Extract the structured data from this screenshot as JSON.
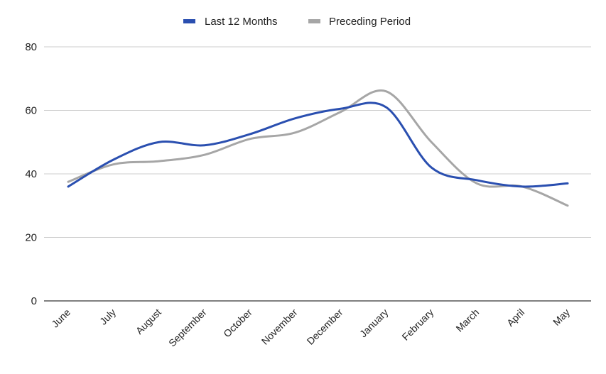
{
  "chart_data": {
    "type": "line",
    "categories": [
      "June",
      "July",
      "August",
      "September",
      "October",
      "November",
      "December",
      "January",
      "February",
      "March",
      "April",
      "May"
    ],
    "series": [
      {
        "name": "Last 12 Months",
        "color": "#2a4fb0",
        "values": [
          36,
          44.5,
          50,
          49,
          52.5,
          57.5,
          60.5,
          61,
          42,
          38,
          36,
          37
        ]
      },
      {
        "name": "Preceding Period",
        "color": "#a6a6a6",
        "values": [
          37.5,
          43,
          44,
          46,
          51,
          53,
          59.5,
          66,
          50,
          37,
          36,
          30
        ]
      }
    ],
    "y_ticks": [
      0,
      20,
      40,
      60,
      80
    ],
    "ylim": [
      0,
      80
    ],
    "grid": true,
    "legend_position": "top-center",
    "axis_color": "#333333",
    "grid_color": "#cccccc"
  }
}
